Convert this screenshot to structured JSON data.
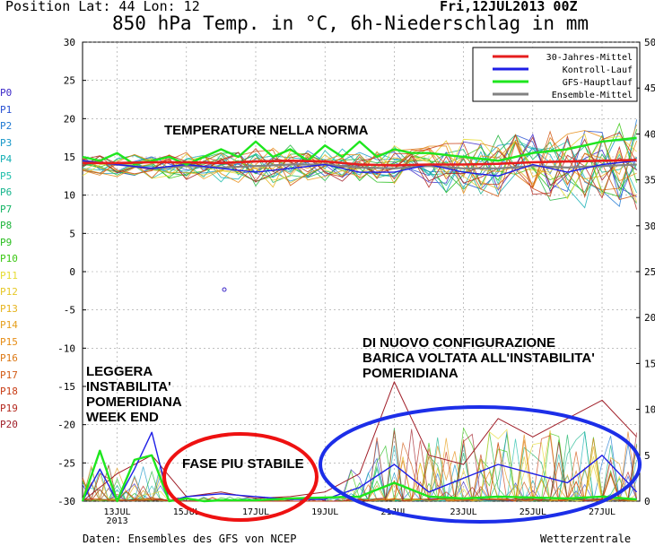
{
  "header": {
    "position_label": "Position   Lat: 44 Lon: 12",
    "title": "850 hPa Temp. in °C, 6h-Niederschlag in mm",
    "run_date": "Fri,12JUL2013 00Z"
  },
  "footer": {
    "source": "Daten: Ensembles des GFS von NCEP",
    "credit": "Wetterzentrale"
  },
  "members": [
    {
      "label": "P0",
      "color": "#3c28c8"
    },
    {
      "label": "P1",
      "color": "#2850d2"
    },
    {
      "label": "P2",
      "color": "#1e78d2"
    },
    {
      "label": "P3",
      "color": "#1496c8"
    },
    {
      "label": "P4",
      "color": "#14afb4"
    },
    {
      "label": "P5",
      "color": "#1ebeaa"
    },
    {
      "label": "P6",
      "color": "#14b48c"
    },
    {
      "label": "P7",
      "color": "#14b464"
    },
    {
      "label": "P8",
      "color": "#1eb43c"
    },
    {
      "label": "P9",
      "color": "#28be1e"
    },
    {
      "label": "P10",
      "color": "#3cc814"
    },
    {
      "label": "P11",
      "color": "#e6dc32"
    },
    {
      "label": "P12",
      "color": "#e6c828"
    },
    {
      "label": "P13",
      "color": "#e6b41e"
    },
    {
      "label": "P14",
      "color": "#e6a01e"
    },
    {
      "label": "P15",
      "color": "#e68c14"
    },
    {
      "label": "P16",
      "color": "#dc7814"
    },
    {
      "label": "P17",
      "color": "#d25a14"
    },
    {
      "label": "P18",
      "color": "#c83c14"
    },
    {
      "label": "P19",
      "color": "#b4281e"
    },
    {
      "label": "P20",
      "color": "#a01e28"
    }
  ],
  "annotations": {
    "normal": "TEMPERATURE NELLA NORMA",
    "instability": "DI NUOVO CONFIGURAZIONE\nBARICA VOLTATA ALL'INSTABILITA'\nPOMERIDIANA",
    "weekend": "LEGGERA\nINSTABILITA'\nPOMERIDIANA\nWEEK END",
    "stable": "FASE PIU STABILE"
  },
  "chart_data": {
    "type": "line",
    "title": "850 hPa Temp. in °C, 6h-Niederschlag in mm",
    "y_left": {
      "min": -30,
      "max": 30,
      "ticks": [
        30,
        25,
        20,
        15,
        10,
        5,
        0,
        -5,
        -10,
        -15,
        -20,
        -25,
        -30
      ]
    },
    "y_right": {
      "min": 0,
      "max": 50,
      "ticks": [
        50,
        45,
        40,
        35,
        30,
        25,
        20,
        15,
        10,
        5,
        0
      ]
    },
    "x_range": [
      "12JUL2013 00Z",
      "28JUL2013 00Z"
    ],
    "x_ticks": [
      "13JUL\n2013",
      "15JUL",
      "17JUL",
      "19JUL",
      "21JUL",
      "23JUL",
      "25JUL",
      "27JUL"
    ],
    "legend": {
      "placement": "top-right",
      "entries": [
        {
          "name": "30-Jahres-Mittel",
          "color": "#e61e1e"
        },
        {
          "name": "Kontroll-Lauf",
          "color": "#1e1ee6"
        },
        {
          "name": "GFS-Hauptlauf",
          "color": "#1ee61e"
        },
        {
          "name": "Ensemble-Mittel",
          "color": "#828282"
        }
      ]
    },
    "temp_series": {
      "climate_mean": {
        "color": "#e61e1e",
        "days": [
          0,
          1,
          2,
          3,
          4,
          5,
          6,
          7,
          8,
          9,
          10,
          11,
          12,
          13,
          14,
          15,
          16
        ],
        "values": [
          14.2,
          14.2,
          14.3,
          14.3,
          14.2,
          14.4,
          14.5,
          14.4,
          14.0,
          13.9,
          14.0,
          14.0,
          14.1,
          14.3,
          14.4,
          14.5,
          14.6
        ]
      },
      "gfs_main": {
        "color": "#1ee61e",
        "days": [
          0,
          0.5,
          1,
          1.5,
          2,
          2.5,
          3,
          3.5,
          4,
          4.5,
          5,
          5.5,
          6,
          6.5,
          7,
          7.5,
          8,
          8.5,
          9,
          9.5,
          10,
          11,
          12,
          13,
          14,
          15,
          16
        ],
        "values": [
          15,
          14.5,
          15.5,
          14,
          14.5,
          15,
          14,
          15,
          16,
          15,
          17,
          15,
          16,
          14.5,
          16.5,
          15,
          17,
          15,
          16,
          15.5,
          15.5,
          15,
          14.5,
          15.5,
          16,
          17,
          17.5
        ]
      },
      "control": {
        "color": "#1e1ee6",
        "days": [
          0,
          1,
          2,
          3,
          4,
          5,
          6,
          7,
          8,
          9,
          10,
          11,
          12,
          13,
          14,
          15,
          16
        ],
        "values": [
          14.5,
          14,
          13.5,
          14,
          13.5,
          13,
          13.5,
          14,
          13,
          13,
          14,
          13,
          12.5,
          14,
          13,
          14,
          14.5
        ]
      },
      "ensemble_mean": {
        "color": "#828282",
        "days": [
          0,
          1,
          2,
          3,
          4,
          5,
          6,
          7,
          8,
          9,
          10,
          11,
          12,
          13,
          14,
          15,
          16
        ],
        "values": [
          14.5,
          14,
          13.5,
          13.8,
          13.6,
          13.8,
          14,
          14,
          13.6,
          13.5,
          13.8,
          13.5,
          13.5,
          13.8,
          13.6,
          13.8,
          14
        ]
      }
    },
    "precip_series": {
      "unit": "mm",
      "gfs_main": {
        "color": "#1ee61e",
        "days": [
          0,
          0.5,
          1,
          1.5,
          2,
          2.5,
          3,
          3.5,
          4,
          5,
          6,
          7,
          8,
          9,
          10,
          11,
          12,
          13,
          14,
          15,
          16
        ],
        "values": [
          0,
          5.5,
          0,
          4.5,
          5,
          0,
          0.3,
          0,
          0.1,
          0.1,
          0.3,
          0.4,
          0.5,
          2,
          0.5,
          0.3,
          0.5,
          0.4,
          0.3,
          0.5,
          0.2
        ]
      },
      "control": {
        "color": "#1e1ee6",
        "days": [
          0,
          0.5,
          1,
          1.5,
          2,
          2.5,
          3,
          4,
          5,
          6,
          7,
          8,
          9,
          10,
          11,
          12,
          13,
          14,
          15,
          16
        ],
        "values": [
          0,
          3.5,
          0,
          3.5,
          7.5,
          0,
          0.5,
          0.8,
          0.5,
          0.2,
          0.2,
          1.5,
          4,
          1,
          2.5,
          4,
          3,
          2,
          5,
          1
        ]
      },
      "max_member": {
        "color": "#a01e28",
        "days": [
          0,
          1,
          2,
          3,
          4,
          5,
          6,
          7,
          8,
          9,
          10,
          11,
          12,
          13,
          14,
          15,
          16
        ],
        "values": [
          0,
          3,
          5,
          0.5,
          1,
          0.3,
          0.5,
          1,
          3,
          13,
          5,
          4,
          9,
          7,
          9,
          11,
          7
        ]
      }
    }
  }
}
